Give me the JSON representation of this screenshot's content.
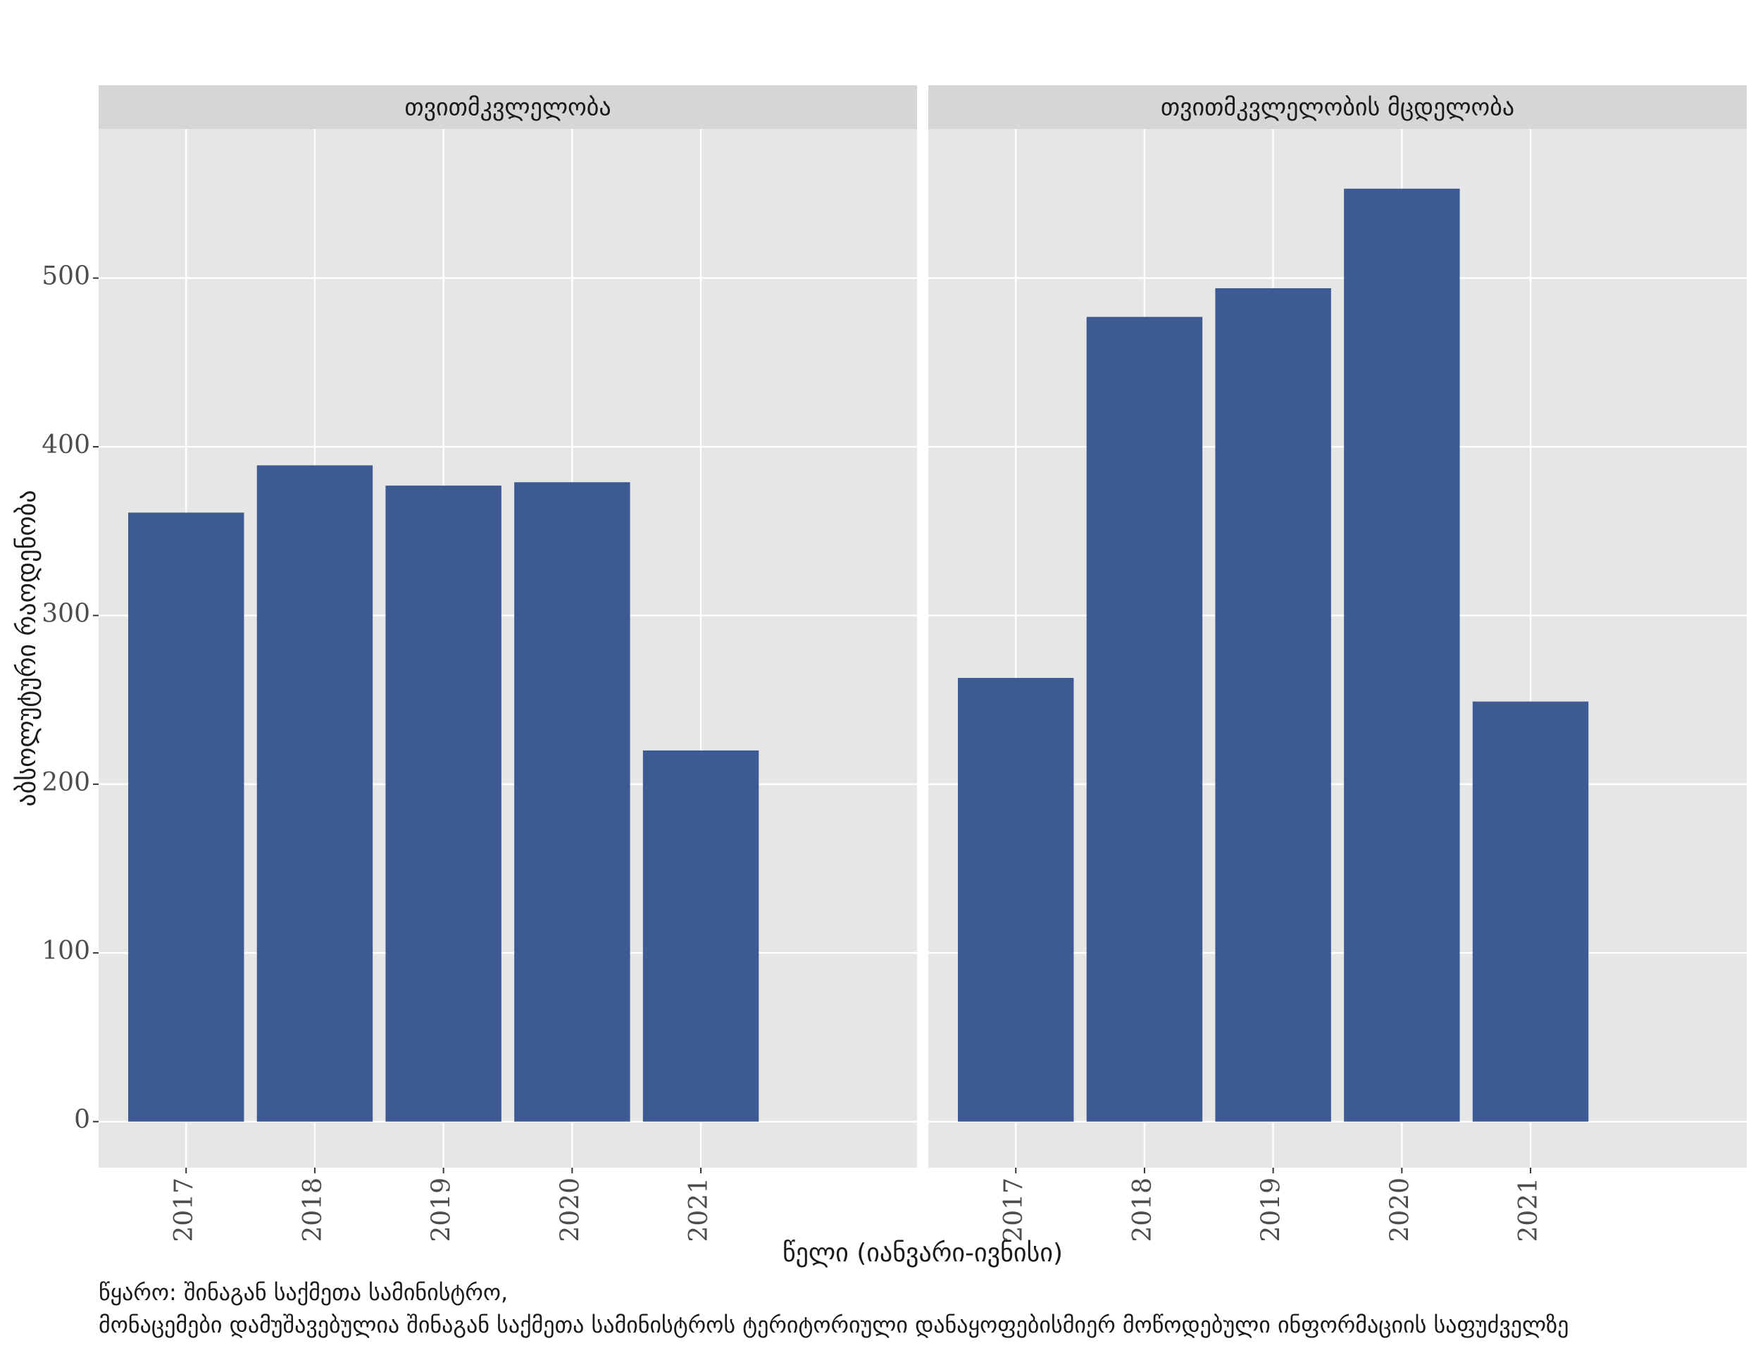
{
  "chart_data": [
    {
      "type": "bar",
      "title": "თვითმკვლელობა",
      "categories": [
        "2017",
        "2018",
        "2019",
        "2020",
        "2021"
      ],
      "values": [
        361,
        389,
        377,
        379,
        220
      ],
      "color": "#3e5a93",
      "ylim": [
        -27.3,
        588.4
      ],
      "yticks": [
        0,
        100,
        200,
        300,
        400,
        500
      ],
      "grid": true
    },
    {
      "type": "bar",
      "title": "თვითმკვლელობის მცდელობა",
      "categories": [
        "2017",
        "2018",
        "2019",
        "2020",
        "2021"
      ],
      "values": [
        263,
        477,
        494,
        553,
        249
      ],
      "color": "#3e5a93",
      "ylim": [
        -27.3,
        588.4
      ],
      "yticks": [
        0,
        100,
        200,
        300,
        400,
        500
      ],
      "grid": true
    }
  ],
  "y_label": "აბსოლუტური რაოდენობა",
  "x_label": "წელი (იანვარი-ივნისი)",
  "caption": [
    "წყარო: შინაგან საქმეთა სამინისტრო,",
    "მონაცემები დამუშავებულია შინაგან საქმეთა სამინისტროს ტერიტორიული დანაყოფებისმიერ მოწოდებული ინფორმაციის საფუძველზე"
  ]
}
